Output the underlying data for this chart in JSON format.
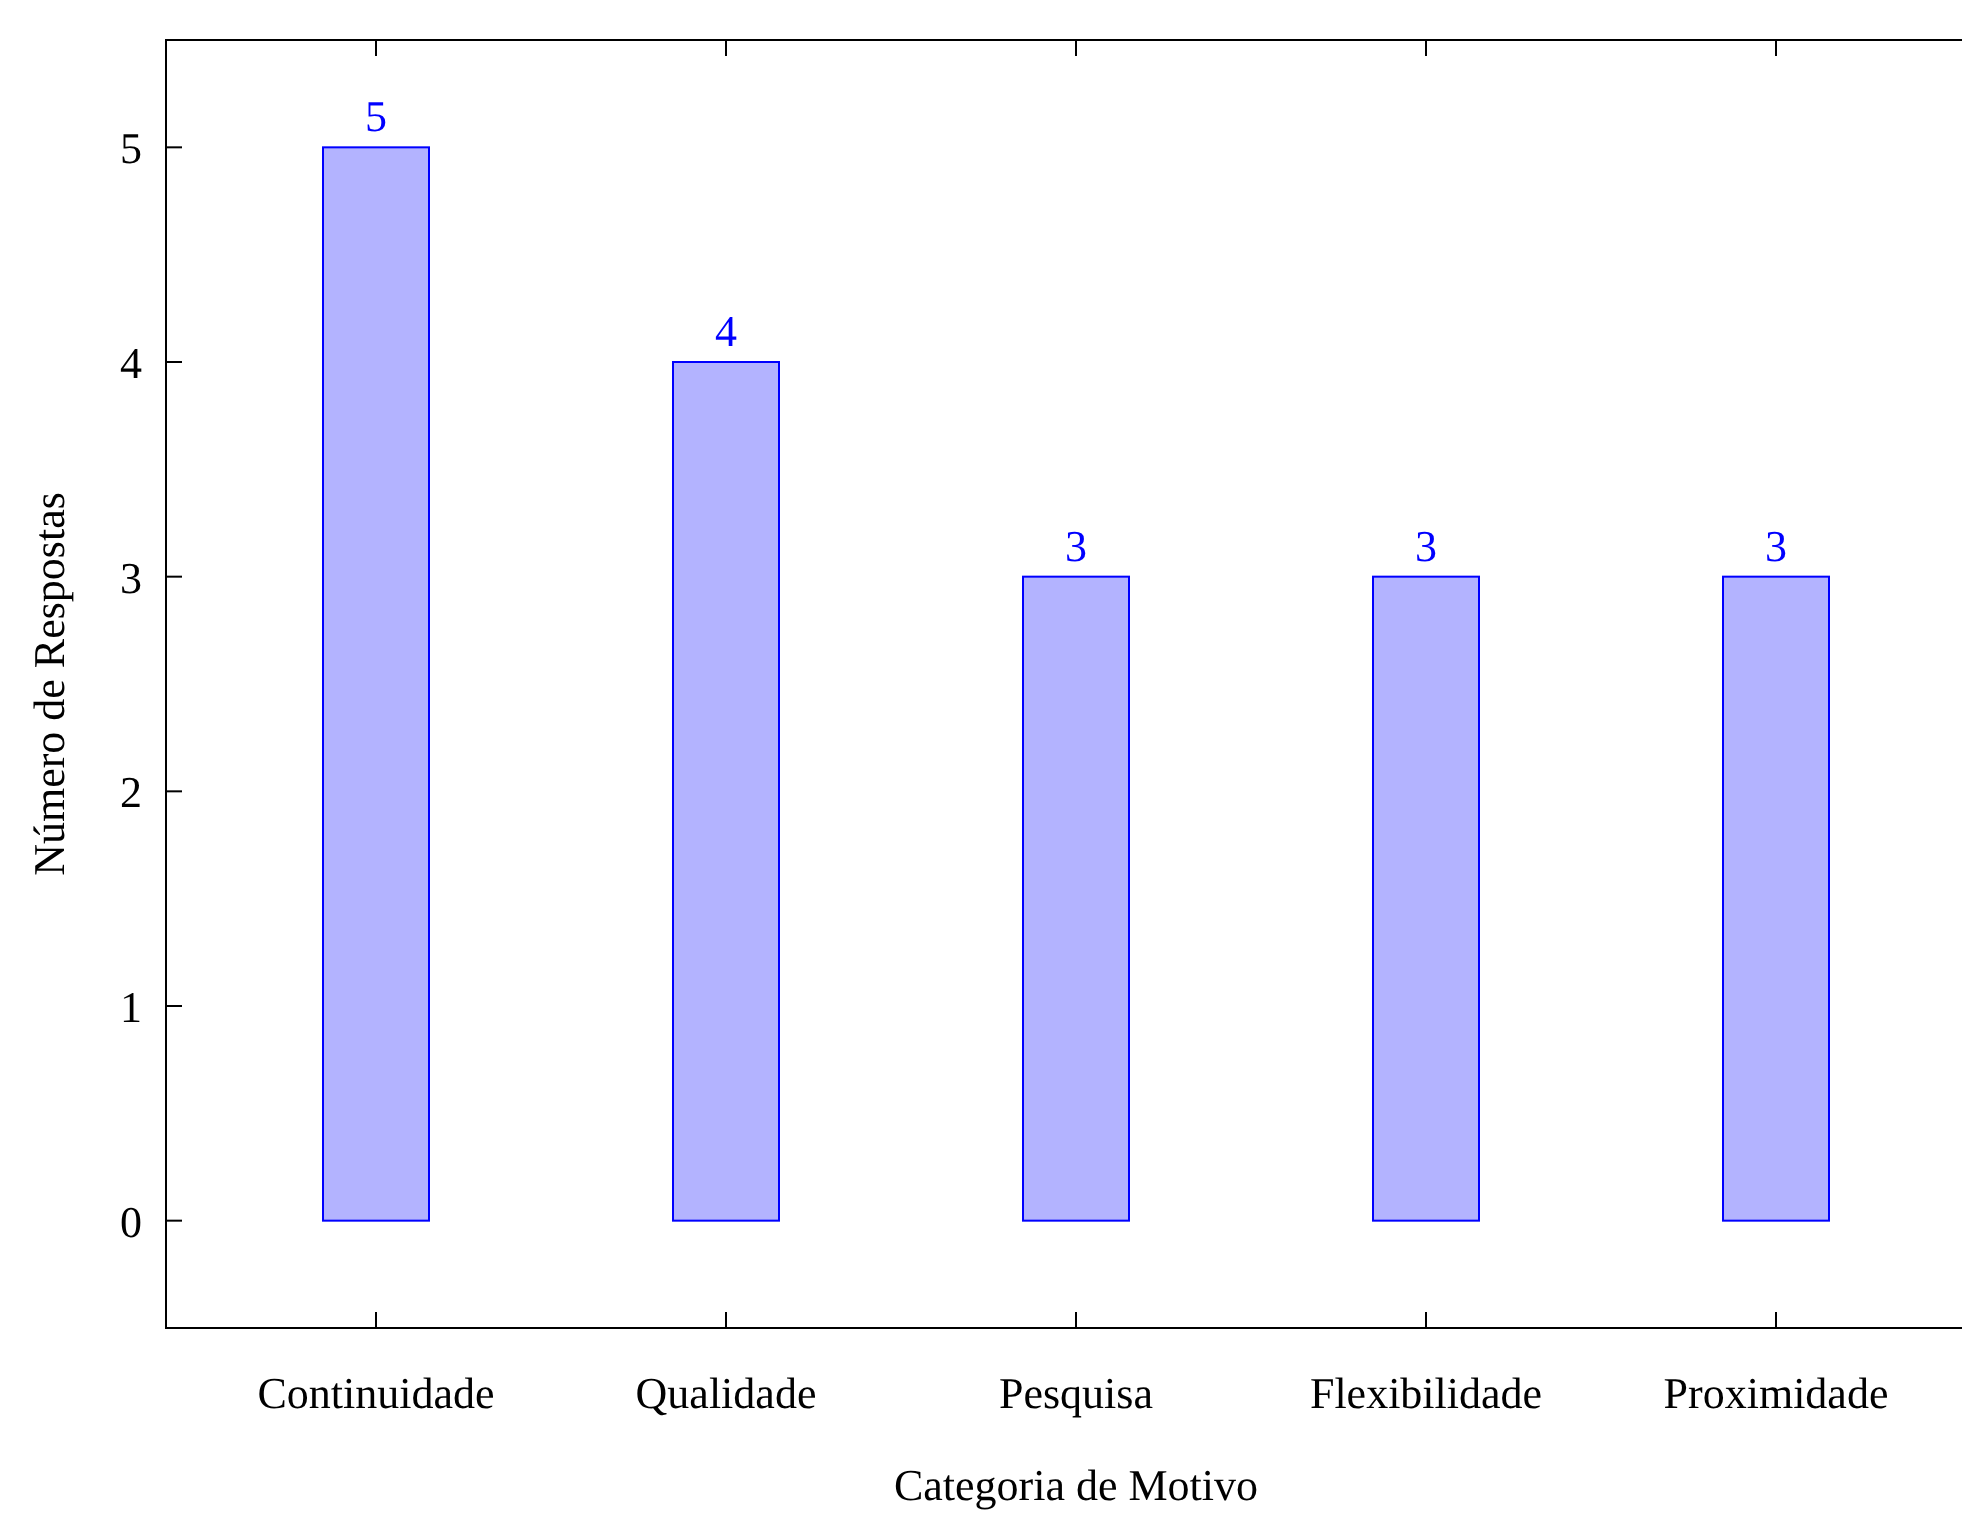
{
  "chart_data": {
    "type": "bar",
    "xlabel": "Categoria de Motivo",
    "ylabel": "Número de Respostas",
    "categories": [
      "Continuidade",
      "Qualidade",
      "Pesquisa",
      "Flexibilidade",
      "Proximidade"
    ],
    "values": [
      5,
      4,
      3,
      3,
      3
    ],
    "color": "#b3b3ff",
    "data_labels": true,
    "ylim": [
      -0.5,
      5.5
    ],
    "yticks": [
      0,
      1,
      2,
      3,
      4,
      5
    ],
    "grid": false
  }
}
